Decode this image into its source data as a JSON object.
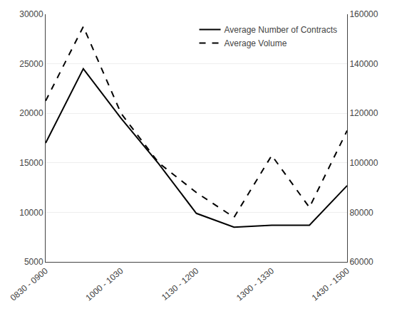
{
  "chart_data": {
    "type": "line",
    "categories": [
      "0830 - 0900",
      null,
      "1000 - 1030",
      null,
      "1130 - 1200",
      null,
      "1300 - 1330",
      null,
      "1430 - 1500"
    ],
    "series": [
      {
        "name": "Average Number of Contracts",
        "color": "#000000",
        "line_style": "solid",
        "values": [
          17000,
          24500,
          19500,
          14900,
          9900,
          8500,
          8700,
          8700,
          12700
        ]
      },
      {
        "name": "Average Volume",
        "color": "#000000",
        "line_style": "dashed",
        "axis": "y2",
        "values": [
          125000,
          155000,
          120000,
          100000,
          88000,
          78000,
          103000,
          82000,
          113000
        ]
      }
    ],
    "ylim": [
      5000,
      30000
    ],
    "yticks": [
      5000,
      10000,
      15000,
      20000,
      25000,
      30000
    ],
    "y2lim": [
      60000,
      160000
    ],
    "y2ticks": [
      60000,
      80000,
      100000,
      120000,
      140000,
      160000
    ],
    "grid": true,
    "legend": "upper right"
  }
}
